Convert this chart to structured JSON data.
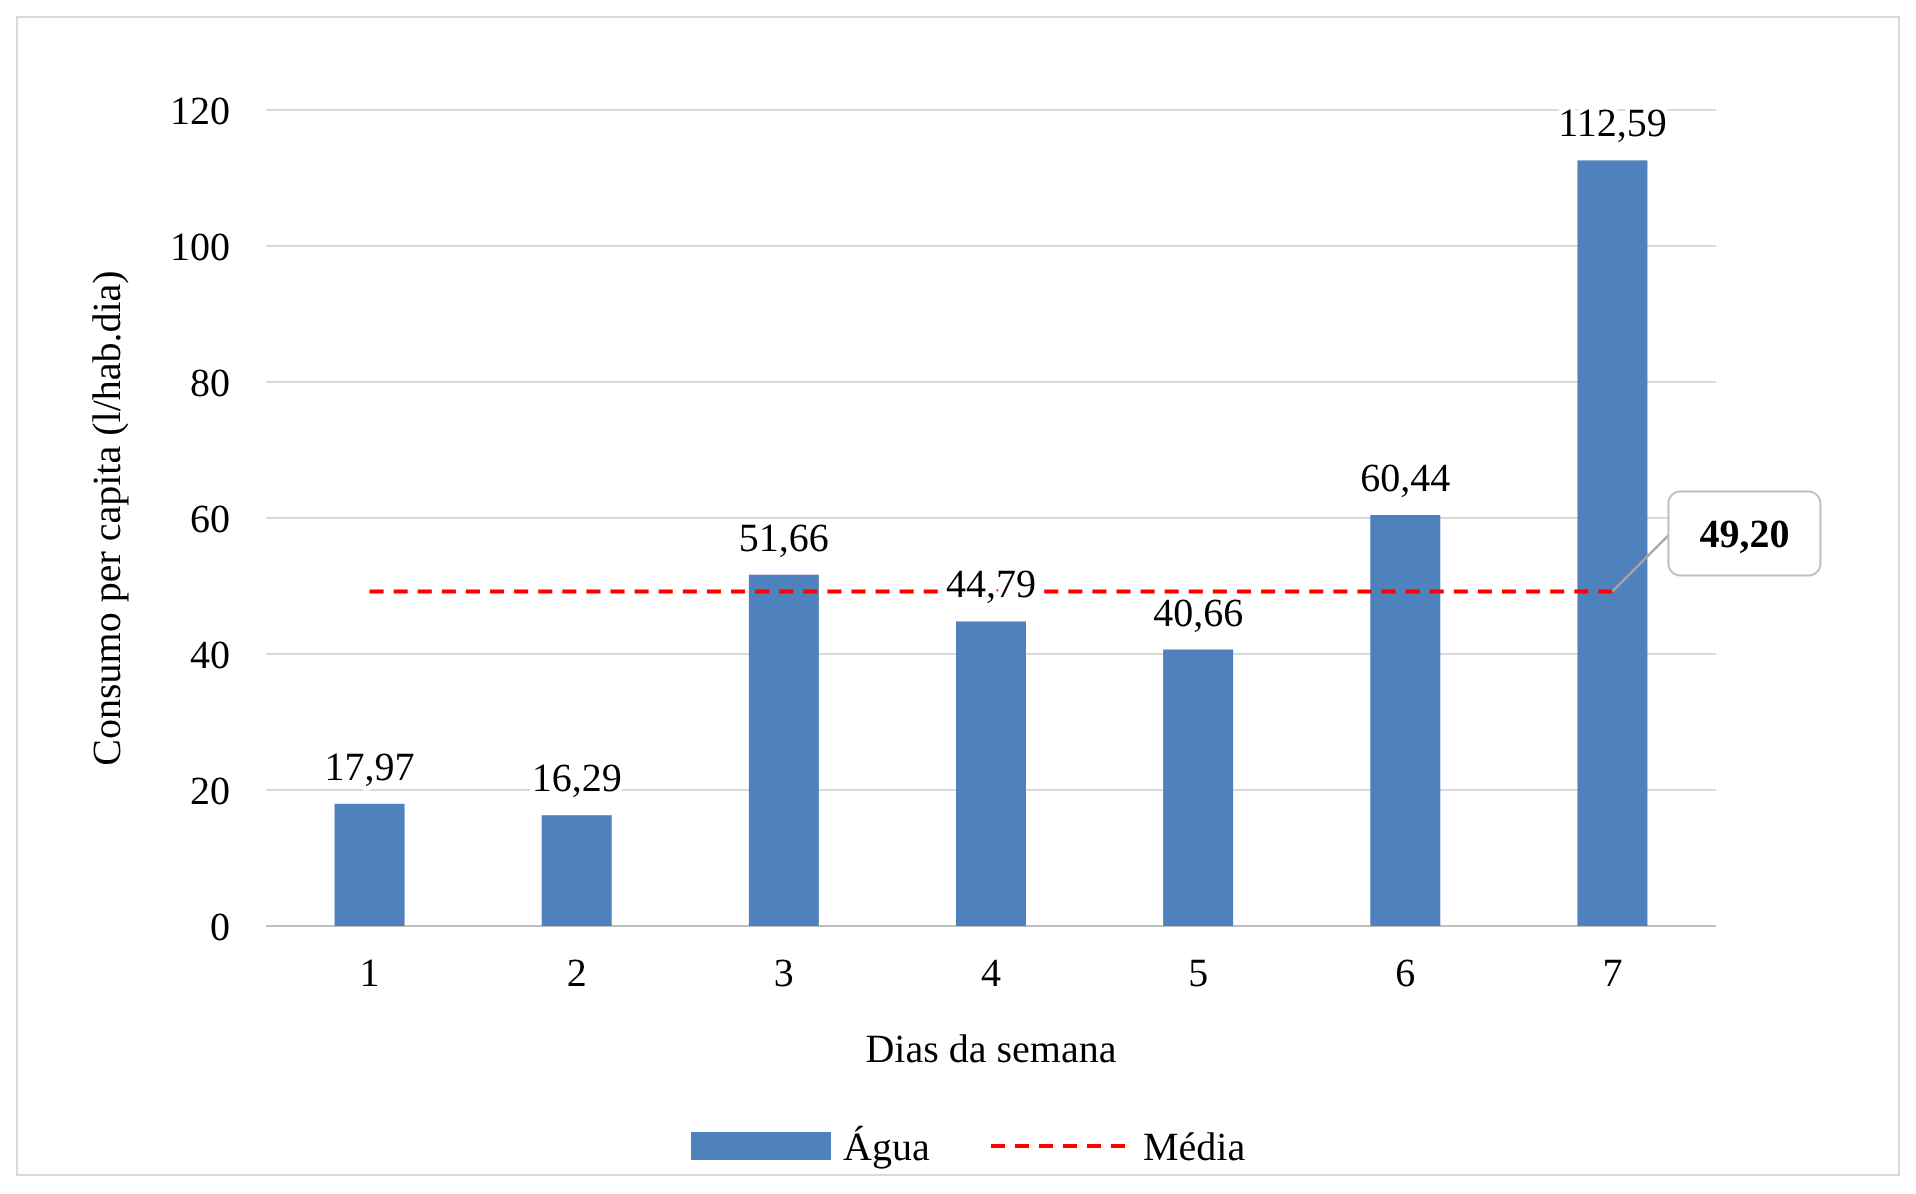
{
  "chart_data": {
    "type": "bar",
    "xlabel": "Dias da semana",
    "ylabel": "Consumo per capita (l/hab.dia)",
    "categories": [
      "1",
      "2",
      "3",
      "4",
      "5",
      "6",
      "7"
    ],
    "series": [
      {
        "name": "Água",
        "color": "#4f81bd",
        "values": [
          17.97,
          16.29,
          51.66,
          44.79,
          40.66,
          60.44,
          112.59
        ],
        "value_labels": [
          "17,97",
          "16,29",
          "51,66",
          "44,79",
          "40,66",
          "60,44",
          "112,59"
        ]
      },
      {
        "name": "Média",
        "type": "line",
        "color": "#ff0000",
        "line_style": "dashed",
        "values": [
          49.2,
          49.2,
          49.2,
          49.2,
          49.2,
          49.2,
          49.2
        ],
        "value_labels": [
          null,
          null,
          null,
          null,
          null,
          null,
          "49,20"
        ]
      }
    ],
    "ylim": [
      0,
      120
    ],
    "yticks": [
      0,
      20,
      40,
      60,
      80,
      100,
      120
    ],
    "grid": "y",
    "legend": "bottom"
  }
}
